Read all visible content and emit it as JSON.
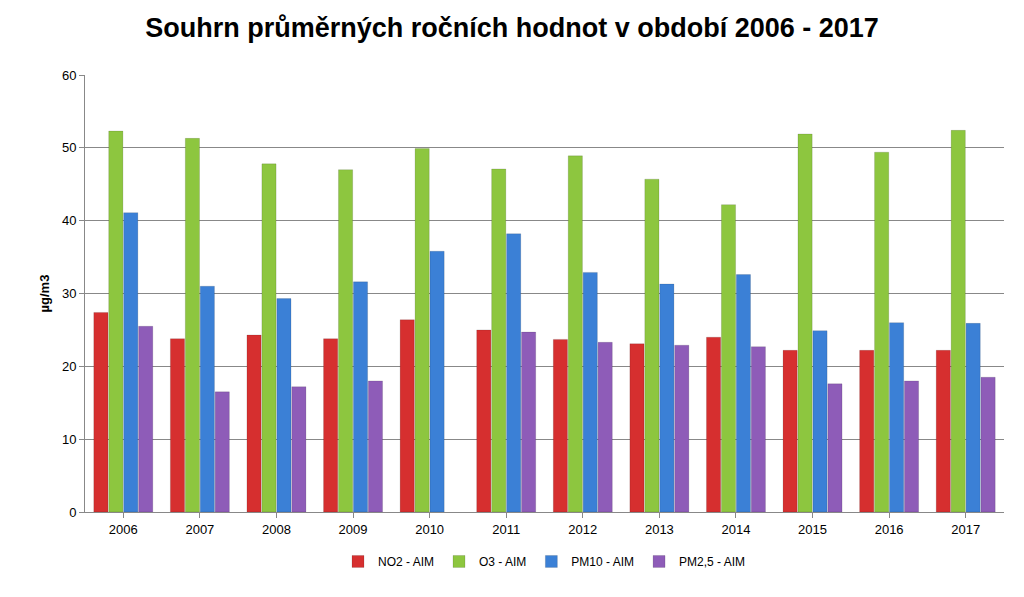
{
  "chart_data": {
    "type": "bar",
    "title": "Souhrn průměrných ročních hodnot v období 2006 - 2017",
    "y_label": "µg/m3",
    "categories": [
      "2006",
      "2007",
      "2008",
      "2009",
      "2010",
      "2011",
      "2012",
      "2013",
      "2014",
      "2015",
      "2016",
      "2017"
    ],
    "series": [
      {
        "name": "NO2 - AIM",
        "color": "#d62f2f",
        "values": [
          27.4,
          23.8,
          24.3,
          23.8,
          26.4,
          25.0,
          23.7,
          23.1,
          24.0,
          22.2,
          22.2,
          22.2
        ]
      },
      {
        "name": "O3 - AIM",
        "color": "#8dc63f",
        "values": [
          52.3,
          51.3,
          47.8,
          47.0,
          49.9,
          47.1,
          48.9,
          45.7,
          42.2,
          51.9,
          49.4,
          52.4
        ]
      },
      {
        "name": "PM10 - AIM",
        "color": "#3b80d6",
        "values": [
          41.1,
          31.0,
          29.3,
          31.6,
          35.8,
          38.2,
          32.9,
          31.3,
          32.6,
          24.9,
          26.0,
          25.9
        ]
      },
      {
        "name": "PM2,5 - AIM",
        "color": "#8e5cb8",
        "values": [
          25.5,
          16.5,
          17.2,
          18.0,
          null,
          24.7,
          23.3,
          22.9,
          22.7,
          17.6,
          18.0,
          18.5
        ]
      }
    ],
    "ylim": [
      0,
      60
    ],
    "yticks": [
      0,
      10,
      20,
      30,
      40,
      50,
      60
    ],
    "grid": true,
    "legend": "bottom"
  }
}
